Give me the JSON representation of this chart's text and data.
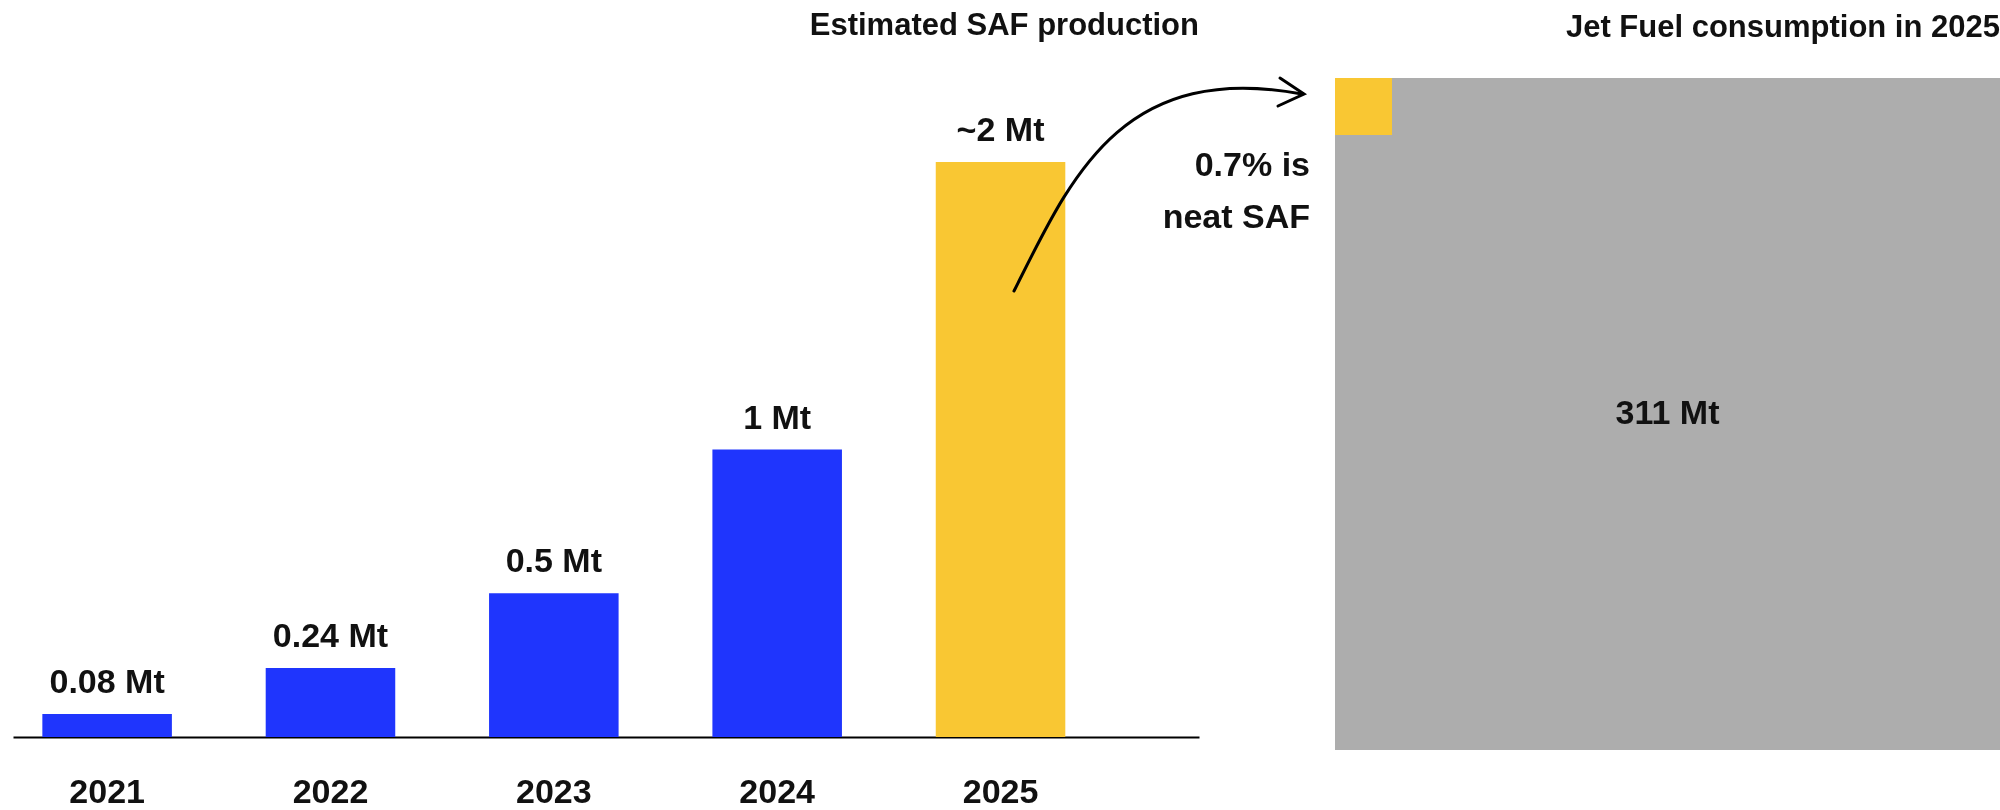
{
  "chart_data": [
    {
      "type": "bar",
      "title": "Estimated SAF production",
      "categories": [
        "2021",
        "2022",
        "2023",
        "2024",
        "2025"
      ],
      "values": [
        0.08,
        0.24,
        0.5,
        1,
        2
      ],
      "colors": [
        "#1f35fd",
        "#1f35fd",
        "#1f35fd",
        "#1f35fd",
        "#f9c733"
      ],
      "value_labels": [
        "0.08 Mt",
        "0.24 Mt",
        "0.5 Mt",
        "1 Mt",
        "~2 Mt"
      ]
    },
    {
      "type": "other",
      "title": "Jet Fuel consumption in 2025",
      "categories": [
        null
      ],
      "values": [
        311
      ],
      "colors": [
        "#adadad"
      ],
      "value_labels": [
        "311 Mt"
      ],
      "annotations": [
        "0.7% is neat SAF"
      ]
    }
  ]
}
